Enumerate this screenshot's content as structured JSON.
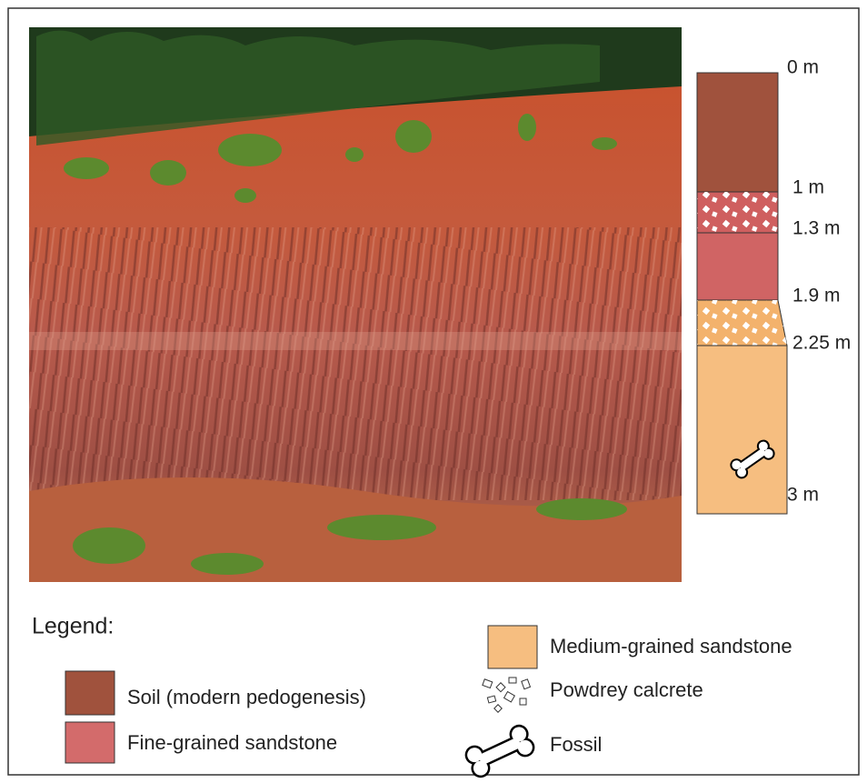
{
  "column": {
    "depths": [
      "0 m",
      "1 m",
      "1.3 m",
      "1.9 m",
      "2.25 m",
      "3 m"
    ]
  },
  "legend": {
    "title": "Legend:",
    "items": [
      "Soil (modern pedogenesis)",
      "Fine-grained sandstone",
      "Medium-grained sandstone",
      "Powdrey calcrete",
      "Fossil"
    ]
  }
}
